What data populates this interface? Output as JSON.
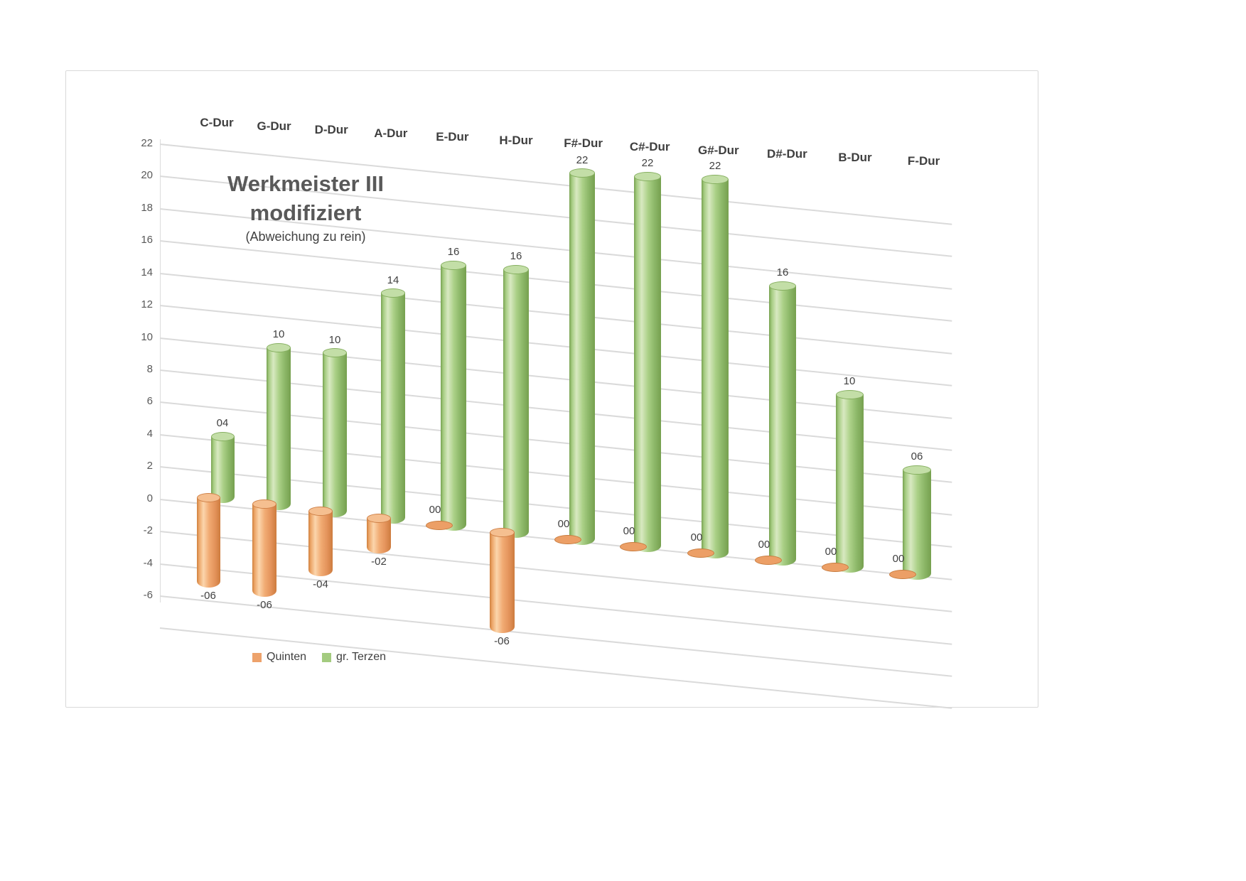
{
  "title": {
    "line1": "Werkmeister III",
    "line2": "modifiziert",
    "subtitle": "(Abweichung zu rein)"
  },
  "legend": {
    "items": [
      {
        "label": "Quinten",
        "color": "#eda26b"
      },
      {
        "label": "gr. Terzen",
        "color": "#a3cb7f"
      }
    ]
  },
  "axis": {
    "y_tick_labels": [
      "22",
      "20",
      "18",
      "16",
      "14",
      "12",
      "10",
      "8",
      "6",
      "4",
      "2",
      "0",
      "-2",
      "-4",
      "-6"
    ]
  },
  "chart_data": {
    "type": "bar",
    "subtype": "3d-cylinder",
    "title": "Werkmeister III modifiziert",
    "subtitle": "(Abweichung zu rein)",
    "categories": [
      "C-Dur",
      "G-Dur",
      "D-Dur",
      "A-Dur",
      "E-Dur",
      "H-Dur",
      "F#-Dur",
      "C#-Dur",
      "G#-Dur",
      "D#-Dur",
      "B-Dur",
      "F-Dur"
    ],
    "series": [
      {
        "name": "Quinten",
        "color": "#eda26b",
        "values": [
          -6,
          -6,
          -4,
          -2,
          0,
          -6,
          0,
          0,
          0,
          0,
          0,
          0
        ],
        "labels": [
          "-06",
          "-06",
          "-04",
          "-02",
          "00",
          "-06",
          "00",
          "00",
          "00",
          "00",
          "00",
          "00"
        ]
      },
      {
        "name": "gr. Terzen",
        "color": "#a3cb7f",
        "values": [
          4,
          10,
          10,
          14,
          16,
          16,
          22,
          22,
          22,
          16,
          10,
          6
        ],
        "labels": [
          "04",
          "10",
          "10",
          "14",
          "16",
          "16",
          "22",
          "22",
          "22",
          "16",
          "10",
          "06"
        ]
      }
    ],
    "y_ticks": [
      22,
      20,
      18,
      16,
      14,
      12,
      10,
      8,
      6,
      4,
      2,
      0,
      -2,
      -4,
      -6
    ],
    "ylim": [
      -6,
      22
    ],
    "grid": true,
    "legend_position": "bottom-left"
  }
}
